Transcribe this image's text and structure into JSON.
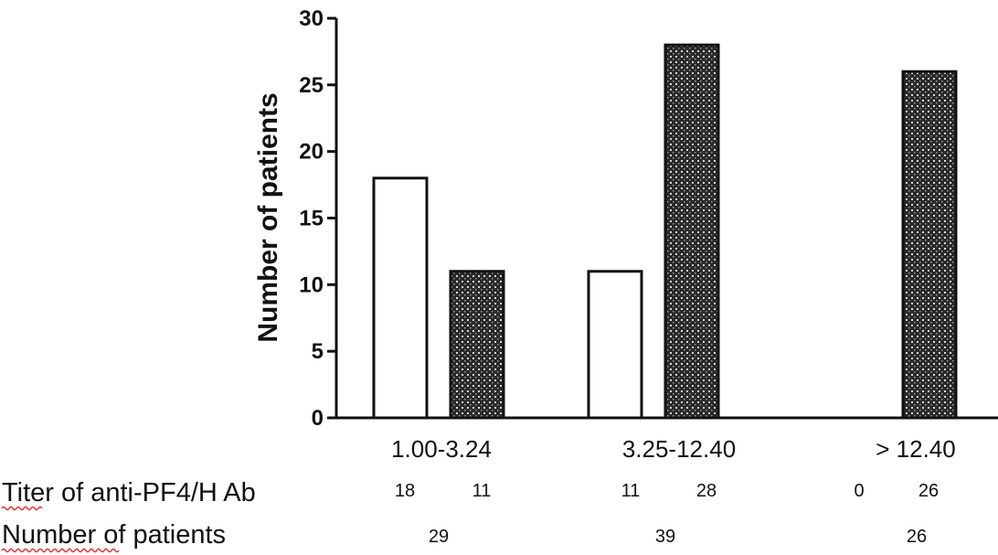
{
  "chart_data": {
    "type": "bar",
    "categories": [
      "1.00-3.24",
      "3.25-12.40",
      "> 12.40"
    ],
    "series": [
      {
        "values": [
          18,
          11,
          0
        ],
        "fill": "#ffffff",
        "pattern": "none"
      },
      {
        "values": [
          11,
          28,
          26
        ],
        "fill": "#222222",
        "pattern": "dotted-dark"
      }
    ],
    "ylabel": "Number of patients",
    "xlabel": "",
    "ylim": [
      0,
      30
    ],
    "yticks": [
      0,
      5,
      10,
      15,
      20,
      25,
      30
    ],
    "grid": false
  },
  "table": {
    "row1_label": "Titer of anti-PF4/H Ab",
    "row1_values": [
      "18",
      "11",
      "11",
      "28",
      "0",
      "26"
    ],
    "row2_label": "Number of patients",
    "row2_values": [
      "29",
      "39",
      "26"
    ]
  },
  "colors": {
    "axis": "#111111",
    "bar_stroke": "#111111",
    "spellcheck_underline": "#dd3333"
  }
}
